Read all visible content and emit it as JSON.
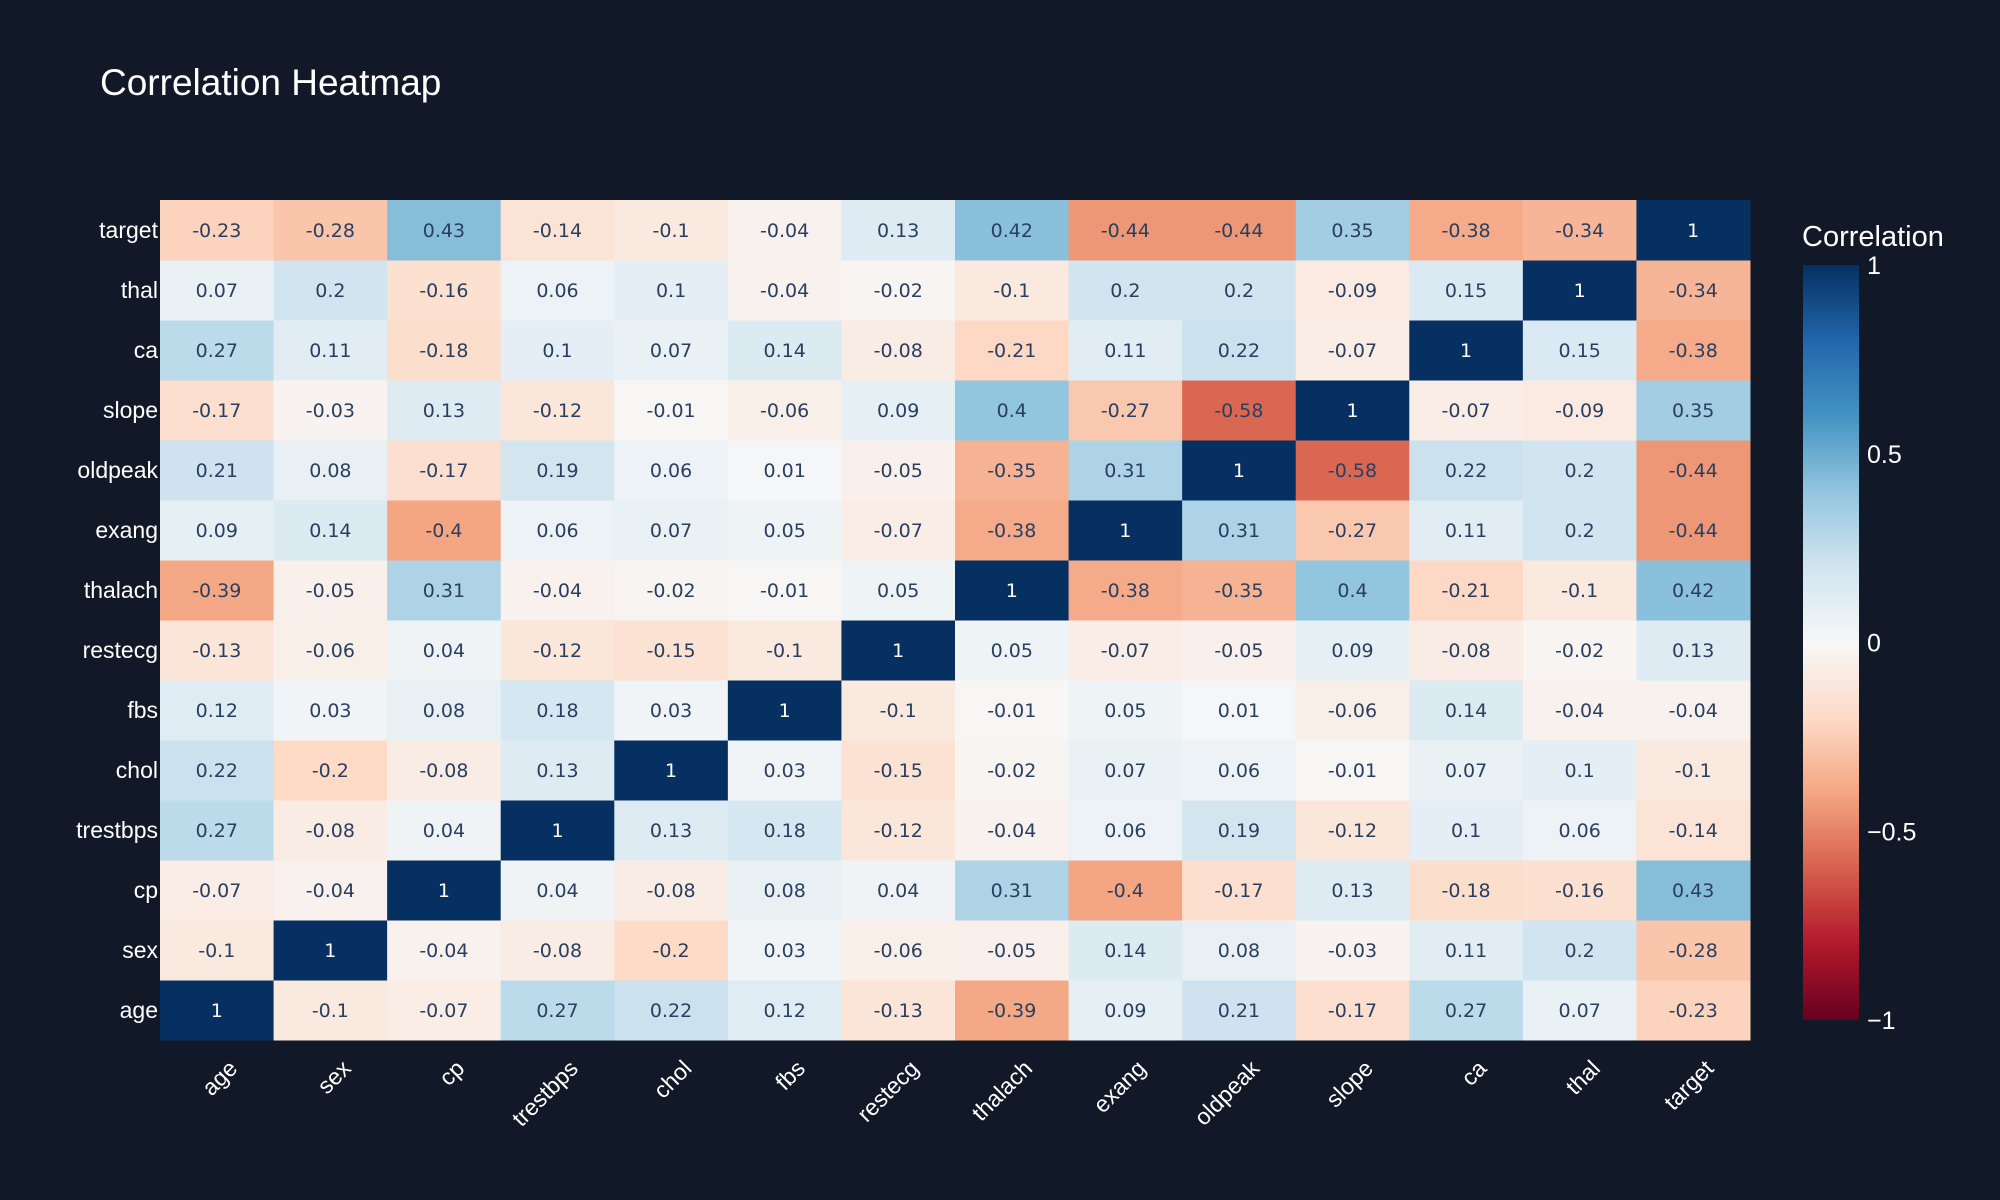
{
  "colors": {
    "background": "#111827",
    "text": "#ffffff",
    "colorscale": [
      "#67001f",
      "#b2182b",
      "#d6604d",
      "#f4a582",
      "#fddbc7",
      "#f7f7f7",
      "#d1e5f0",
      "#92c5de",
      "#4393c3",
      "#2166ac",
      "#053061"
    ]
  },
  "chart_data": {
    "type": "heatmap",
    "title": "Correlation Heatmap",
    "x": [
      "age",
      "sex",
      "cp",
      "trestbps",
      "chol",
      "fbs",
      "restecg",
      "thalach",
      "exang",
      "oldpeak",
      "slope",
      "ca",
      "thal",
      "target"
    ],
    "y": [
      "age",
      "sex",
      "cp",
      "trestbps",
      "chol",
      "fbs",
      "restecg",
      "thalach",
      "exang",
      "oldpeak",
      "slope",
      "ca",
      "thal",
      "target"
    ],
    "z": [
      [
        1,
        -0.1,
        -0.07,
        0.27,
        0.22,
        0.12,
        -0.13,
        -0.39,
        0.09,
        0.21,
        -0.17,
        0.27,
        0.07,
        -0.23
      ],
      [
        -0.1,
        1,
        -0.04,
        -0.08,
        -0.2,
        0.03,
        -0.06,
        -0.05,
        0.14,
        0.08,
        -0.03,
        0.11,
        0.2,
        -0.28
      ],
      [
        -0.07,
        -0.04,
        1,
        0.04,
        -0.08,
        0.08,
        0.04,
        0.31,
        -0.4,
        -0.17,
        0.13,
        -0.18,
        -0.16,
        0.43
      ],
      [
        0.27,
        -0.08,
        0.04,
        1,
        0.13,
        0.18,
        -0.12,
        -0.04,
        0.06,
        0.19,
        -0.12,
        0.1,
        0.06,
        -0.14
      ],
      [
        0.22,
        -0.2,
        -0.08,
        0.13,
        1,
        0.03,
        -0.15,
        -0.02,
        0.07,
        0.06,
        -0.01,
        0.07,
        0.1,
        -0.1
      ],
      [
        0.12,
        0.03,
        0.08,
        0.18,
        0.03,
        1,
        -0.1,
        -0.01,
        0.05,
        0.01,
        -0.06,
        0.14,
        -0.04,
        -0.04
      ],
      [
        -0.13,
        -0.06,
        0.04,
        -0.12,
        -0.15,
        -0.1,
        1,
        0.05,
        -0.07,
        -0.05,
        0.09,
        -0.08,
        -0.02,
        0.13
      ],
      [
        -0.39,
        -0.05,
        0.31,
        -0.04,
        -0.02,
        -0.01,
        0.05,
        1,
        -0.38,
        -0.35,
        0.4,
        -0.21,
        -0.1,
        0.42
      ],
      [
        0.09,
        0.14,
        -0.4,
        0.06,
        0.07,
        0.05,
        -0.07,
        -0.38,
        1,
        0.31,
        -0.27,
        0.11,
        0.2,
        -0.44
      ],
      [
        0.21,
        0.08,
        -0.17,
        0.19,
        0.06,
        0.01,
        -0.05,
        -0.35,
        0.31,
        1,
        -0.58,
        0.22,
        0.2,
        -0.44
      ],
      [
        -0.17,
        -0.03,
        0.13,
        -0.12,
        -0.01,
        -0.06,
        0.09,
        0.4,
        -0.27,
        -0.58,
        1,
        -0.07,
        -0.09,
        0.35
      ],
      [
        0.27,
        0.11,
        -0.18,
        0.1,
        0.07,
        0.14,
        -0.08,
        -0.21,
        0.11,
        0.22,
        -0.07,
        1,
        0.15,
        -0.38
      ],
      [
        0.07,
        0.2,
        -0.16,
        0.06,
        0.1,
        -0.04,
        -0.02,
        -0.1,
        0.2,
        0.2,
        -0.09,
        0.15,
        1,
        -0.34
      ],
      [
        -0.23,
        -0.28,
        0.43,
        -0.14,
        -0.1,
        -0.04,
        0.13,
        0.42,
        -0.44,
        -0.44,
        0.35,
        -0.38,
        -0.34,
        1
      ]
    ],
    "zmin": -1,
    "zmax": 1,
    "colorbar": {
      "title": "Correlation",
      "tickvals": [
        1,
        0.5,
        0,
        -0.5,
        -1
      ],
      "ticktext": [
        "1",
        "0.5",
        "0",
        "−0.5",
        "−1"
      ]
    }
  }
}
